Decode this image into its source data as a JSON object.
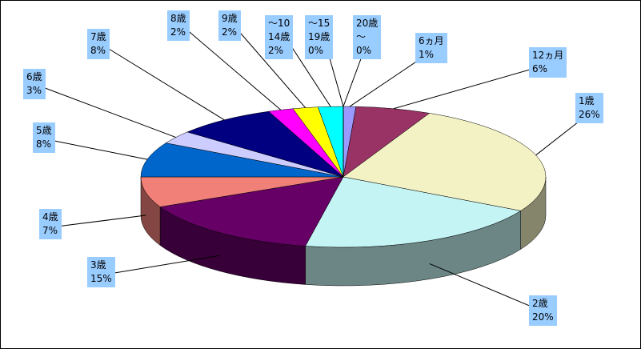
{
  "chart_data": {
    "type": "pie3d",
    "categories": [
      "6ヵ月",
      "12ヵ月",
      "1歳",
      "2歳",
      "3歳",
      "4歳",
      "5歳",
      "6歳",
      "7歳",
      "8歳",
      "9歳",
      "～10\n14歳",
      "～15\n19歳",
      "20歳\n～"
    ],
    "values": [
      1,
      6,
      26,
      20,
      15,
      7,
      8,
      3,
      8,
      2,
      2,
      2,
      0,
      0
    ],
    "value_labels": [
      "1%",
      "6%",
      "26%",
      "20%",
      "15%",
      "7%",
      "8%",
      "3%",
      "8%",
      "2%",
      "2%",
      "2%",
      "0%",
      "0%"
    ],
    "colors": [
      "#9999ff",
      "#993366",
      "#f2f2c4",
      "#c4f4f4",
      "#660066",
      "#f08078",
      "#0066cc",
      "#ccccff",
      "#000080",
      "#ff00ff",
      "#ffff00",
      "#00ffff",
      "#800080",
      "#800000"
    ]
  }
}
